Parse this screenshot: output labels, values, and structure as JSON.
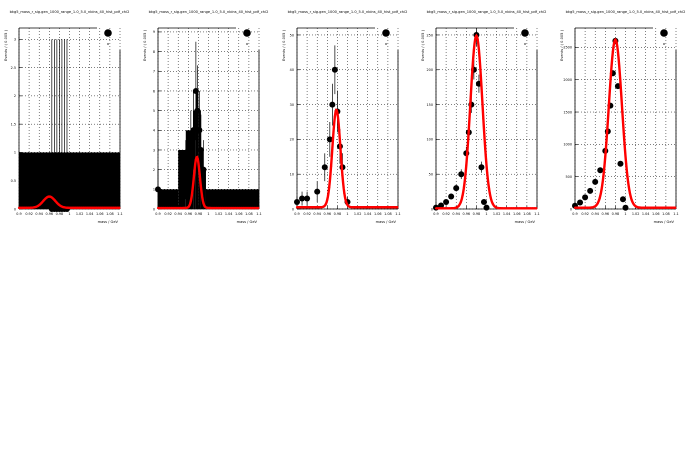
{
  "page": {
    "background": "#ffffff"
  },
  "colors": {
    "data": "#000000",
    "fit": "#ff0000",
    "grid": "#000000"
  },
  "panels_common": {
    "title": "bkg5_mass_r_sig.gen_1000_range_1.0_5.0_nbins_40_hist_pdf_chi2",
    "xlabel": "mass / GeV",
    "ylabel": "Events / ( 0.005 )",
    "legend_marker": "filled-circle",
    "legend_placement": "top-right"
  },
  "chart_data": [
    {
      "type": "scatter",
      "title": "bkg5_mass_r_sig.gen_1000_range_1.0_5.0_nbins_40_hist_pdf_chi2",
      "xlabel": "mass / GeV",
      "ylabel": "Events / ( 0.005 )",
      "xlim": [
        0.9,
        1.1
      ],
      "ylim": [
        0,
        3.2
      ],
      "grid": true,
      "xticks": [
        "0.9",
        "0.92",
        "0.94",
        "0.96",
        "0.98",
        "1",
        "1.02",
        "1.04",
        "1.06",
        "1.08",
        "1.1"
      ],
      "yticks": [
        "0",
        "0.5",
        "1",
        "1.5",
        "2",
        "2.5",
        "3"
      ],
      "series": [
        {
          "kind": "histogram",
          "x": [
            0.9,
            1.1
          ],
          "values": [
            1.0
          ]
        },
        {
          "kind": "points",
          "x": [
            0.965,
            0.97,
            0.975,
            0.98,
            0.985,
            0.99,
            0.995
          ],
          "values": [
            0,
            0,
            0,
            0,
            0,
            0,
            0
          ],
          "err": [
            3.0,
            3.0,
            3.0,
            3.0,
            3.0,
            3.0,
            3.0
          ]
        },
        {
          "kind": "fit",
          "peak": 0.2,
          "mean": 0.96,
          "sigma": 0.012,
          "base": 0.02
        }
      ]
    },
    {
      "type": "scatter",
      "title": "bkg5_mass_r_sig.gen_1000_range_1.0_5.0_nbins_40_hist_pdf_chi2",
      "xlabel": "mass / GeV",
      "ylabel": "Events / ( 0.005 )",
      "xlim": [
        0.9,
        1.1
      ],
      "ylim": [
        0,
        9.2
      ],
      "grid": true,
      "xticks": [
        "0.9",
        "0.92",
        "0.94",
        "0.96",
        "0.98",
        "1",
        "1.02",
        "1.04",
        "1.06",
        "1.08",
        "1.1"
      ],
      "yticks": [
        "0",
        "1",
        "2",
        "3",
        "4",
        "5",
        "6",
        "7",
        "8",
        "9"
      ],
      "series": [
        {
          "kind": "histogram",
          "x": [
            0.9,
            0.94,
            0.955,
            0.97,
            0.975,
            0.98,
            0.985,
            0.99,
            0.995,
            1.1
          ],
          "values": [
            1.0,
            3.0,
            4.0,
            5.0,
            6.0,
            5.0,
            3.0,
            2.0,
            1.0
          ]
        },
        {
          "kind": "points",
          "x": [
            0.9,
            0.955,
            0.965,
            0.97,
            0.975,
            0.978,
            0.982,
            0.985,
            0.99
          ],
          "values": [
            1,
            2,
            3,
            4,
            6,
            5,
            4,
            3,
            2
          ],
          "err": [
            1,
            1.5,
            2,
            2,
            2.5,
            2.3,
            2,
            1.8,
            1.5
          ]
        },
        {
          "kind": "fit",
          "peak": 2.6,
          "mean": 0.977,
          "sigma": 0.006,
          "base": 0.05
        }
      ]
    },
    {
      "type": "scatter",
      "title": "bkg5_mass_r_sig.gen_1000_range_1.0_5.0_nbins_40_hist_pdf_chi2",
      "xlabel": "mass / GeV",
      "ylabel": "Events / ( 0.005 )",
      "xlim": [
        0.9,
        1.1
      ],
      "ylim": [
        0,
        52
      ],
      "grid": true,
      "xticks": [
        "0.9",
        "0.92",
        "0.94",
        "0.96",
        "0.98",
        "1",
        "1.02",
        "1.04",
        "1.06",
        "1.08",
        "1.1"
      ],
      "yticks": [
        "0",
        "10",
        "20",
        "30",
        "40",
        "50"
      ],
      "series": [
        {
          "kind": "points",
          "x": [
            0.9,
            0.91,
            0.92,
            0.94,
            0.955,
            0.965,
            0.97,
            0.975,
            0.98,
            0.985,
            0.99,
            1.0
          ],
          "values": [
            2,
            3,
            3,
            5,
            12,
            20,
            30,
            40,
            28,
            18,
            12,
            2
          ],
          "err": [
            1.5,
            2,
            2,
            3,
            4,
            5,
            6,
            7,
            6,
            5,
            4,
            1.5
          ]
        },
        {
          "kind": "fit",
          "peak": 28,
          "mean": 0.978,
          "sigma": 0.008,
          "base": 0.5
        }
      ]
    },
    {
      "type": "scatter",
      "title": "bkg5_mass_r_sig.gen_1000_range_1.0_5.0_nbins_40_hist_pdf_chi2",
      "xlabel": "mass / GeV",
      "ylabel": "Events / ( 0.005 )",
      "xlim": [
        0.9,
        1.1
      ],
      "ylim": [
        0,
        260
      ],
      "grid": true,
      "xticks": [
        "0.9",
        "0.92",
        "0.94",
        "0.96",
        "0.98",
        "1",
        "1.02",
        "1.04",
        "1.06",
        "1.08",
        "1.1"
      ],
      "yticks": [
        "0",
        "50",
        "100",
        "150",
        "200",
        "250"
      ],
      "series": [
        {
          "kind": "points",
          "x": [
            0.9,
            0.91,
            0.92,
            0.93,
            0.94,
            0.95,
            0.96,
            0.965,
            0.97,
            0.975,
            0.98,
            0.985,
            0.99,
            0.995,
            1.0
          ],
          "values": [
            2,
            5,
            10,
            18,
            30,
            50,
            80,
            110,
            150,
            200,
            250,
            180,
            60,
            10,
            2
          ],
          "err": [
            1,
            2,
            3,
            4,
            5,
            7,
            9,
            10,
            12,
            14,
            16,
            13,
            8,
            3,
            1
          ]
        },
        {
          "kind": "fit",
          "peak": 248,
          "mean": 0.98,
          "sigma": 0.012,
          "base": 1
        }
      ]
    },
    {
      "type": "scatter",
      "title": "bkg5_mass_r_sig.gen_1000_range_1.0_5.0_nbins_40_hist_pdf_chi2",
      "xlabel": "mass / GeV",
      "ylabel": "Events / ( 0.005 )",
      "xlim": [
        0.9,
        1.1
      ],
      "ylim": [
        0,
        2800
      ],
      "grid": true,
      "xticks": [
        "0.9",
        "0.92",
        "0.94",
        "0.96",
        "0.98",
        "1",
        "1.02",
        "1.04",
        "1.06",
        "1.08",
        "1.1"
      ],
      "yticks": [
        "0",
        "500",
        "1000",
        "1500",
        "2000",
        "2500"
      ],
      "series": [
        {
          "kind": "points",
          "x": [
            0.9,
            0.91,
            0.92,
            0.93,
            0.94,
            0.95,
            0.96,
            0.965,
            0.97,
            0.975,
            0.98,
            0.985,
            0.99,
            0.995,
            1.0
          ],
          "values": [
            50,
            100,
            180,
            280,
            420,
            600,
            900,
            1200,
            1600,
            2100,
            2600,
            1900,
            700,
            150,
            20
          ],
          "err": [
            7,
            10,
            13,
            17,
            20,
            24,
            30,
            35,
            40,
            46,
            51,
            44,
            26,
            12,
            4
          ]
        },
        {
          "kind": "fit",
          "peak": 2600,
          "mean": 0.98,
          "sigma": 0.013,
          "base": 20
        }
      ]
    }
  ]
}
